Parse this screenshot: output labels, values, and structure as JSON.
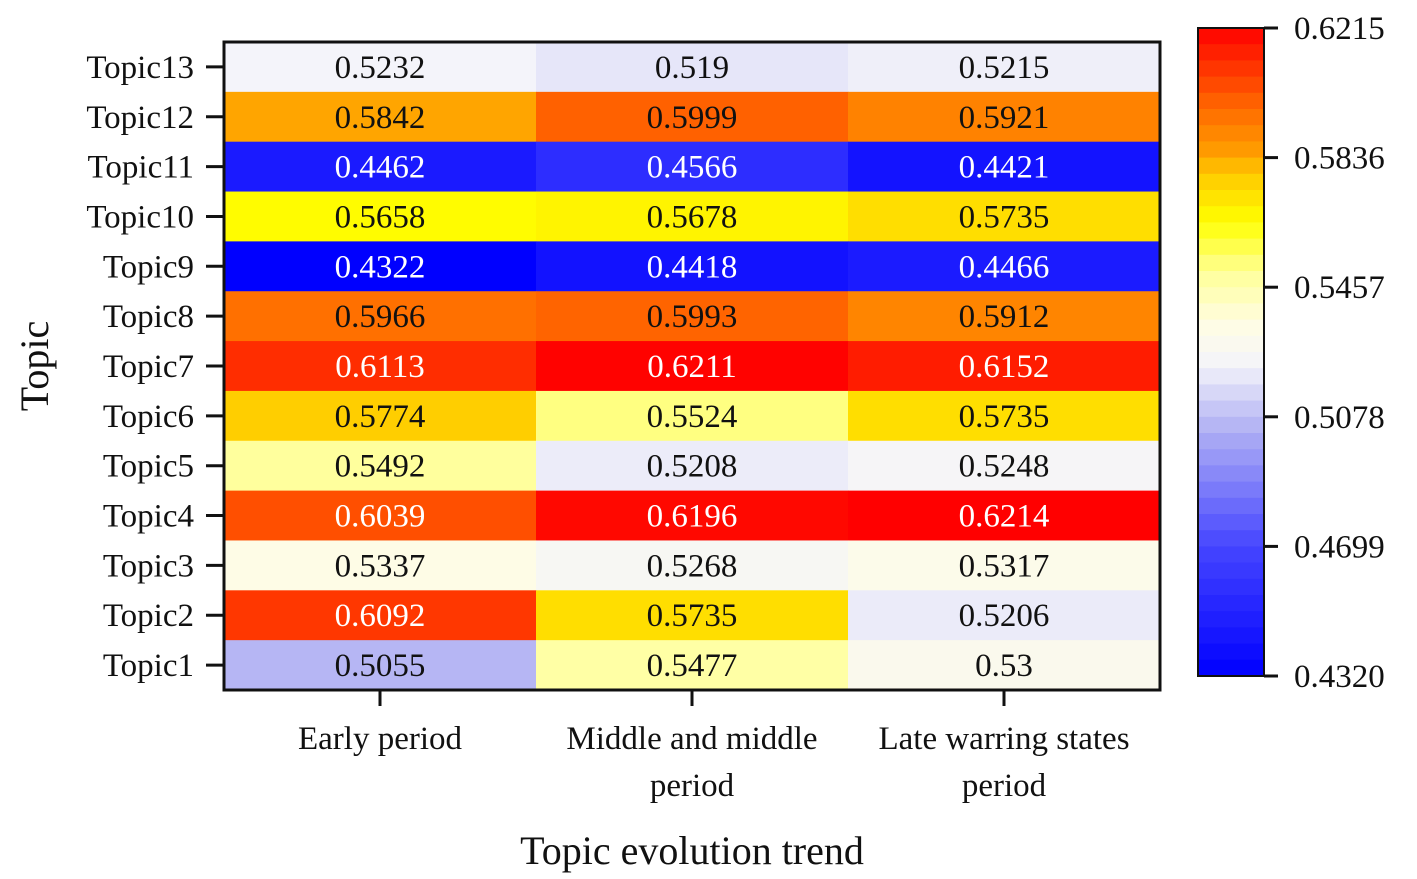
{
  "chart_data": {
    "type": "heatmap",
    "title": "",
    "xlabel": "Topic evolution trend",
    "ylabel": "Topic",
    "x_categories": [
      [
        "Early period"
      ],
      [
        "Middle and middle",
        "period"
      ],
      [
        "Late warring states",
        "period"
      ]
    ],
    "y_categories": [
      "Topic13",
      "Topic12",
      "Topic11",
      "Topic10",
      "Topic9",
      "Topic8",
      "Topic7",
      "Topic6",
      "Topic5",
      "Topic4",
      "Topic3",
      "Topic2",
      "Topic1"
    ],
    "values": [
      [
        "0.5232",
        "0.519",
        "0.5215"
      ],
      [
        "0.5842",
        "0.5999",
        "0.5921"
      ],
      [
        "0.4462",
        "0.4566",
        "0.4421"
      ],
      [
        "0.5658",
        "0.5678",
        "0.5735"
      ],
      [
        "0.4322",
        "0.4418",
        "0.4466"
      ],
      [
        "0.5966",
        "0.5993",
        "0.5912"
      ],
      [
        "0.6113",
        "0.6211",
        "0.6152"
      ],
      [
        "0.5774",
        "0.5524",
        "0.5735"
      ],
      [
        "0.5492",
        "0.5208",
        "0.5248"
      ],
      [
        "0.6039",
        "0.6196",
        "0.6214"
      ],
      [
        "0.5337",
        "0.5268",
        "0.5317"
      ],
      [
        "0.6092",
        "0.5735",
        "0.5206"
      ],
      [
        "0.5055",
        "0.5477",
        "0.53"
      ]
    ],
    "colorbar": {
      "range": [
        0.432,
        0.6215
      ],
      "ticks": [
        "0.6215",
        "0.5836",
        "0.5457",
        "0.5078",
        "0.4699",
        "0.4320"
      ],
      "colormap": [
        [
          0.432,
          "#0000ff"
        ],
        [
          0.47,
          "#4646ff"
        ],
        [
          0.505,
          "#b4b4f4"
        ],
        [
          0.523,
          "#f4f4fa"
        ],
        [
          0.535,
          "#fffde4"
        ],
        [
          0.55,
          "#ffff99"
        ],
        [
          0.565,
          "#ffff00"
        ],
        [
          0.578,
          "#ffcc00"
        ],
        [
          0.586,
          "#ff9a00"
        ],
        [
          0.598,
          "#ff6a00"
        ],
        [
          0.61,
          "#ff3300"
        ],
        [
          0.6215,
          "#ff0000"
        ]
      ]
    },
    "grid": false
  }
}
